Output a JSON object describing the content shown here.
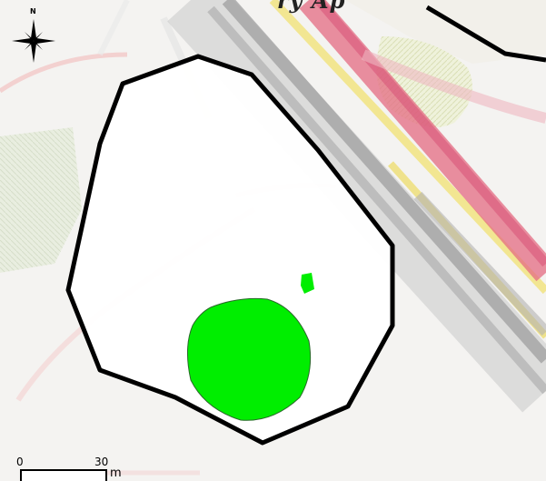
{
  "map": {
    "top_text": "ry Ap",
    "colors": {
      "boundary": "#000000",
      "green_area": "#00ee00",
      "road_red": "#e07080",
      "road_grey": "#a8a8a8",
      "road_yellow": "#f0e070",
      "background": "#f4f3f1"
    }
  },
  "north_arrow": {
    "label": "N",
    "icon": "compass-star-icon"
  },
  "scale_bar": {
    "start": "0",
    "end": "30",
    "unit": "m"
  }
}
